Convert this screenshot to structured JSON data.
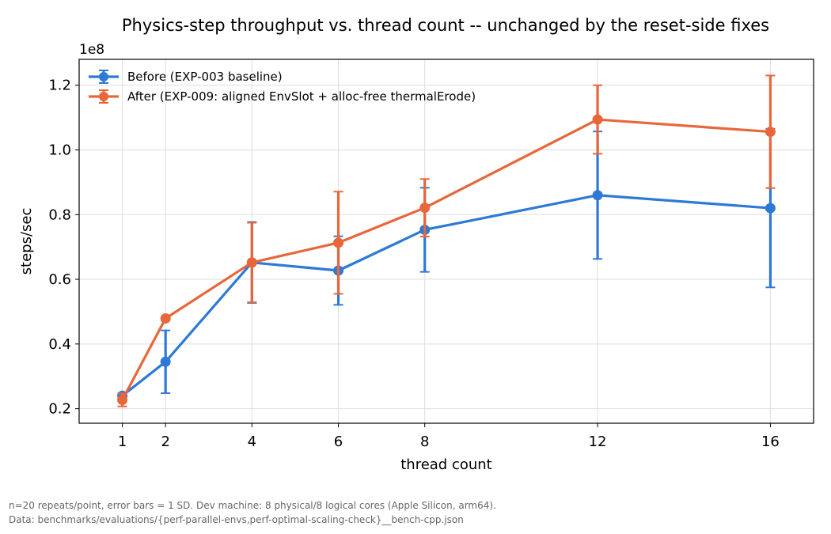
{
  "chart_data": {
    "type": "line",
    "title": "Physics-step throughput vs. thread count -- unchanged by the reset-side fixes",
    "xlabel": "thread count",
    "ylabel": "steps/sec",
    "y_offset_label": "1e8",
    "y_scale": 100000000,
    "x_ticks": [
      1,
      2,
      4,
      6,
      8,
      12,
      16
    ],
    "y_ticks": [
      0.2,
      0.4,
      0.6,
      0.8,
      1.0,
      1.2
    ],
    "xlim": [
      0.0,
      17.0
    ],
    "ylim": [
      0.155,
      1.28
    ],
    "grid": true,
    "legend_position": "top-left",
    "series": [
      {
        "name": "Before (EXP-003 baseline)",
        "color": "#2d7ad6",
        "x": [
          1,
          2,
          4,
          6,
          8,
          12,
          16
        ],
        "y": [
          0.24,
          0.345,
          0.652,
          0.627,
          0.753,
          0.86,
          0.82
        ],
        "err": [
          0.008,
          0.097,
          0.125,
          0.106,
          0.13,
          0.197,
          0.245
        ]
      },
      {
        "name": "After (EXP-009: aligned EnvSlot + alloc-free thermalErode)",
        "color": "#e8673a",
        "x": [
          1,
          2,
          4,
          6,
          8,
          12,
          16
        ],
        "y": [
          0.227,
          0.479,
          0.652,
          0.713,
          0.821,
          1.094,
          1.056
        ],
        "err": [
          0.02,
          0.005,
          0.123,
          0.158,
          0.089,
          0.106,
          0.174
        ]
      }
    ]
  },
  "footnotes": [
    "n=20 repeats/point, error bars = 1 SD. Dev machine: 8 physical/8 logical cores (Apple Silicon, arm64).",
    "Data: benchmarks/evaluations/{perf-parallel-envs,perf-optimal-scaling-check}__bench-cpp.json"
  ]
}
